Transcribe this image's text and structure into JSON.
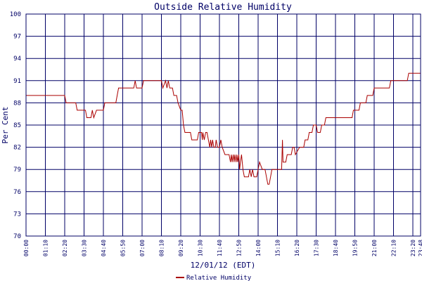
{
  "chart_data": {
    "type": "line",
    "title": "Outside Relative Humidity",
    "xlabel": "12/01/12 (EDT)",
    "ylabel": "Per Cent",
    "ylim": [
      70,
      100
    ],
    "y_ticks": [
      "70",
      "73",
      "76",
      "79",
      "82",
      "85",
      "88",
      "91",
      "94",
      "97",
      "100"
    ],
    "x_ticks": [
      "00:00",
      "01:10",
      "02:20",
      "03:30",
      "04:40",
      "05:50",
      "07:00",
      "08:10",
      "09:20",
      "10:30",
      "11:40",
      "12:50",
      "14:00",
      "15:10",
      "16:20",
      "17:30",
      "18:40",
      "19:50",
      "21:00",
      "22:10",
      "23:20",
      "23:48"
    ],
    "x_range": [
      "00:00",
      "23:48"
    ],
    "grid": true,
    "legend": "bottom-center",
    "colors": {
      "series": "#aa0000",
      "grid": "#000066",
      "text": "#000066"
    },
    "series": [
      {
        "name": "Relative Humidity",
        "points": [
          [
            "00:00",
            89
          ],
          [
            "02:20",
            89
          ],
          [
            "02:25",
            88
          ],
          [
            "03:00",
            88
          ],
          [
            "03:05",
            87
          ],
          [
            "03:35",
            87
          ],
          [
            "03:40",
            86
          ],
          [
            "03:55",
            86
          ],
          [
            "04:00",
            87
          ],
          [
            "04:05",
            86
          ],
          [
            "04:15",
            87
          ],
          [
            "04:40",
            87
          ],
          [
            "04:45",
            88
          ],
          [
            "05:25",
            88
          ],
          [
            "05:30",
            89
          ],
          [
            "05:35",
            90
          ],
          [
            "06:30",
            90
          ],
          [
            "06:35",
            91
          ],
          [
            "06:40",
            90
          ],
          [
            "07:00",
            90
          ],
          [
            "07:05",
            91
          ],
          [
            "08:10",
            91
          ],
          [
            "08:15",
            90
          ],
          [
            "08:25",
            91
          ],
          [
            "08:30",
            90
          ],
          [
            "08:35",
            91
          ],
          [
            "08:40",
            90
          ],
          [
            "08:50",
            90
          ],
          [
            "08:55",
            89
          ],
          [
            "09:05",
            89
          ],
          [
            "09:10",
            88
          ],
          [
            "09:20",
            87
          ],
          [
            "09:25",
            87
          ],
          [
            "09:30",
            85
          ],
          [
            "09:35",
            84
          ],
          [
            "09:55",
            84
          ],
          [
            "10:00",
            83
          ],
          [
            "10:20",
            83
          ],
          [
            "10:25",
            84
          ],
          [
            "10:35",
            84
          ],
          [
            "10:38",
            83
          ],
          [
            "10:40",
            84
          ],
          [
            "10:45",
            83
          ],
          [
            "10:50",
            84
          ],
          [
            "10:55",
            84
          ],
          [
            "11:00",
            83
          ],
          [
            "11:05",
            82
          ],
          [
            "11:08",
            83
          ],
          [
            "11:12",
            82
          ],
          [
            "11:15",
            83
          ],
          [
            "11:20",
            82
          ],
          [
            "11:25",
            82
          ],
          [
            "11:28",
            83
          ],
          [
            "11:33",
            82
          ],
          [
            "11:40",
            82
          ],
          [
            "11:45",
            83
          ],
          [
            "11:50",
            82
          ],
          [
            "12:00",
            81
          ],
          [
            "12:15",
            81
          ],
          [
            "12:20",
            80
          ],
          [
            "12:23",
            81
          ],
          [
            "12:26",
            80
          ],
          [
            "12:30",
            81
          ],
          [
            "12:33",
            80
          ],
          [
            "12:36",
            81
          ],
          [
            "12:40",
            80
          ],
          [
            "12:43",
            81
          ],
          [
            "12:46",
            80
          ],
          [
            "12:50",
            81
          ],
          [
            "12:53",
            79
          ],
          [
            "12:56",
            80
          ],
          [
            "13:00",
            81
          ],
          [
            "13:05",
            79
          ],
          [
            "13:10",
            78
          ],
          [
            "13:25",
            78
          ],
          [
            "13:30",
            79
          ],
          [
            "13:35",
            78
          ],
          [
            "13:40",
            79
          ],
          [
            "13:45",
            78
          ],
          [
            "13:55",
            78
          ],
          [
            "14:00",
            79
          ],
          [
            "14:05",
            80
          ],
          [
            "14:15",
            79
          ],
          [
            "14:25",
            79
          ],
          [
            "14:30",
            78
          ],
          [
            "14:35",
            77
          ],
          [
            "14:40",
            77
          ],
          [
            "14:45",
            78
          ],
          [
            "14:50",
            79
          ],
          [
            "15:25",
            79
          ],
          [
            "15:28",
            83
          ],
          [
            "15:30",
            80
          ],
          [
            "15:35",
            80
          ],
          [
            "15:40",
            80
          ],
          [
            "15:45",
            81
          ],
          [
            "16:00",
            81
          ],
          [
            "16:05",
            82
          ],
          [
            "16:10",
            82
          ],
          [
            "16:15",
            81
          ],
          [
            "16:30",
            82
          ],
          [
            "16:45",
            82
          ],
          [
            "16:50",
            83
          ],
          [
            "17:00",
            83
          ],
          [
            "17:05",
            84
          ],
          [
            "17:15",
            84
          ],
          [
            "17:20",
            85
          ],
          [
            "17:30",
            85
          ],
          [
            "17:35",
            84
          ],
          [
            "17:45",
            84
          ],
          [
            "17:50",
            85
          ],
          [
            "18:00",
            85
          ],
          [
            "18:05",
            86
          ],
          [
            "19:40",
            86
          ],
          [
            "19:45",
            87
          ],
          [
            "20:05",
            87
          ],
          [
            "20:10",
            88
          ],
          [
            "20:30",
            88
          ],
          [
            "20:35",
            89
          ],
          [
            "20:55",
            89
          ],
          [
            "21:00",
            90
          ],
          [
            "21:55",
            90
          ],
          [
            "22:00",
            91
          ],
          [
            "23:00",
            91
          ],
          [
            "23:05",
            92
          ],
          [
            "23:48",
            92
          ]
        ]
      }
    ]
  }
}
